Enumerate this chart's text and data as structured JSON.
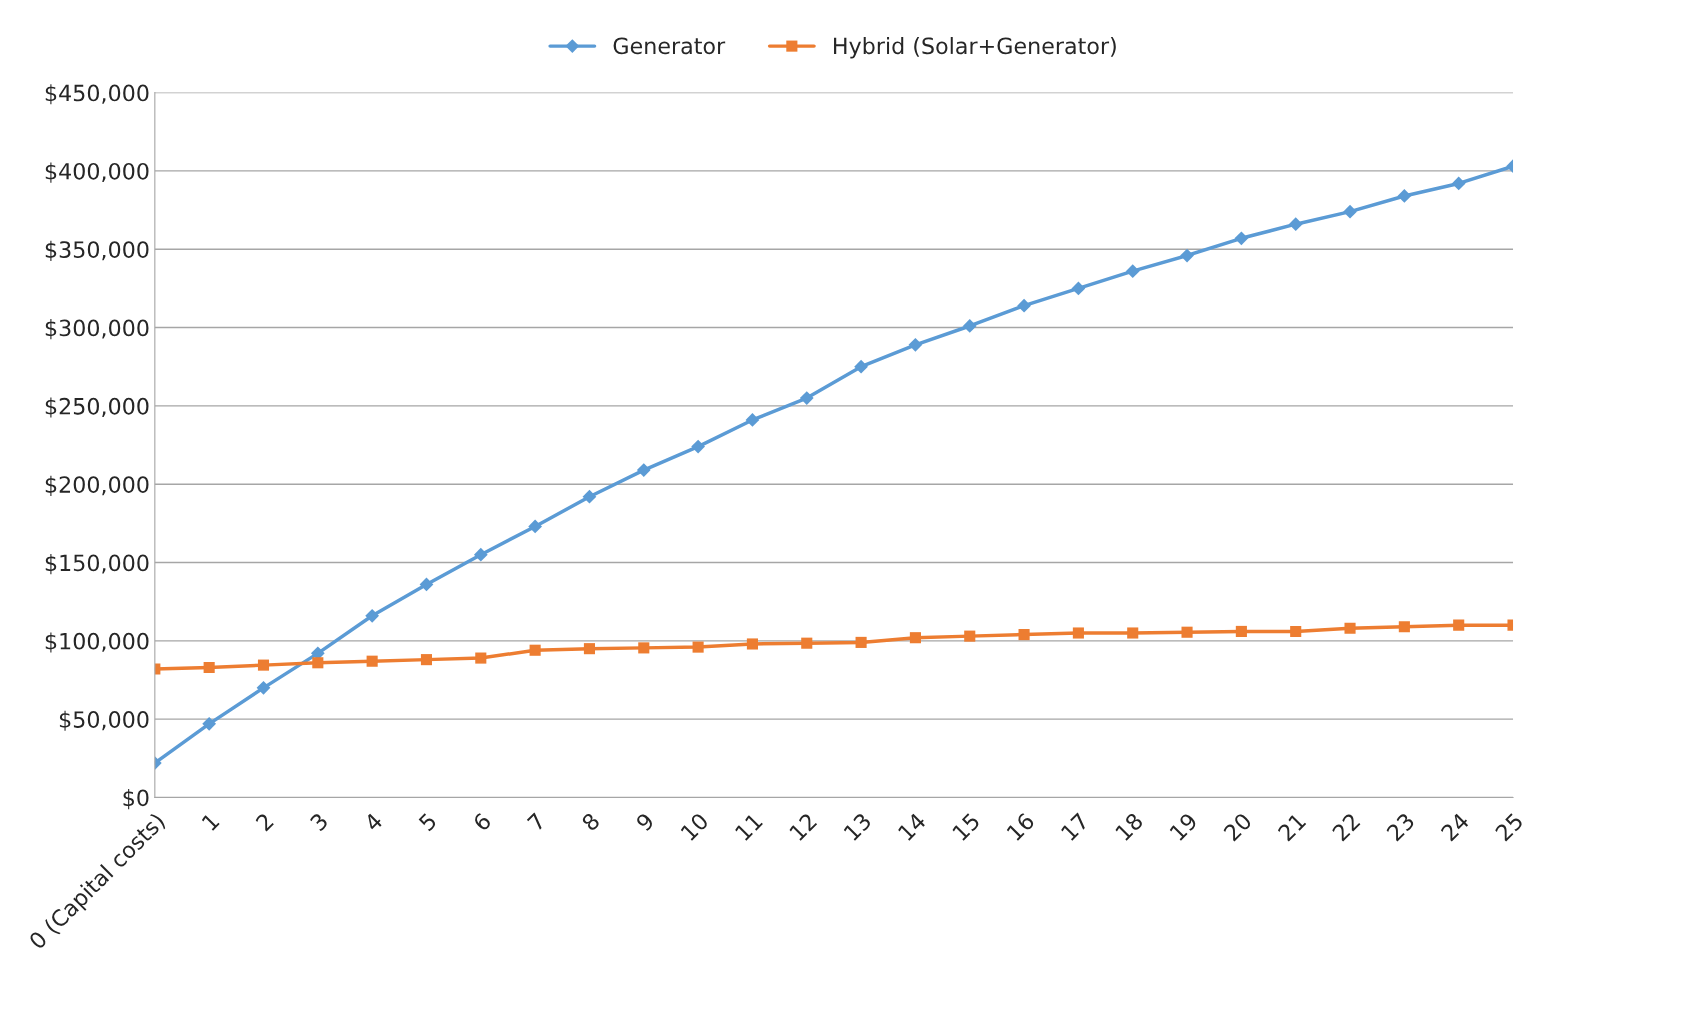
{
  "chart_data": {
    "type": "line",
    "categories": [
      "0 (Capital costs)",
      "1",
      "2",
      "3",
      "4",
      "5",
      "6",
      "7",
      "8",
      "9",
      "10",
      "11",
      "12",
      "13",
      "14",
      "15",
      "16",
      "17",
      "18",
      "19",
      "20",
      "21",
      "22",
      "23",
      "24",
      "25"
    ],
    "series": [
      {
        "name": "Generator",
        "color": "#5b9bd5",
        "marker": "diamond",
        "values": [
          22000,
          47000,
          70000,
          92000,
          116000,
          136000,
          155000,
          173000,
          192000,
          209000,
          224000,
          241000,
          255000,
          275000,
          289000,
          301000,
          314000,
          325000,
          336000,
          346000,
          357000,
          366000,
          374000,
          384000,
          392000,
          403000
        ]
      },
      {
        "name": "Hybrid (Solar+Generator)",
        "color": "#ed7d31",
        "marker": "square",
        "values": [
          82000,
          83000,
          84500,
          86000,
          87000,
          88000,
          89000,
          94000,
          95000,
          95500,
          96000,
          98000,
          98500,
          99000,
          102000,
          103000,
          104000,
          105000,
          105000,
          105500,
          106000,
          106000,
          108000,
          109000,
          110000,
          110000
        ]
      }
    ],
    "ylim": [
      0,
      450000
    ],
    "yticks": [
      {
        "value": 0,
        "label": "$0"
      },
      {
        "value": 50000,
        "label": "$50,000"
      },
      {
        "value": 100000,
        "label": "$100,000"
      },
      {
        "value": 150000,
        "label": "$150,000"
      },
      {
        "value": 200000,
        "label": "$200,000"
      },
      {
        "value": 250000,
        "label": "$250,000"
      },
      {
        "value": 300000,
        "label": "$300,000"
      },
      {
        "value": 350000,
        "label": "$350,000"
      },
      {
        "value": 400000,
        "label": "$400,000"
      },
      {
        "value": 450000,
        "label": "$450,000"
      }
    ],
    "grid": "y",
    "legend": "top",
    "line_style": "solid"
  }
}
